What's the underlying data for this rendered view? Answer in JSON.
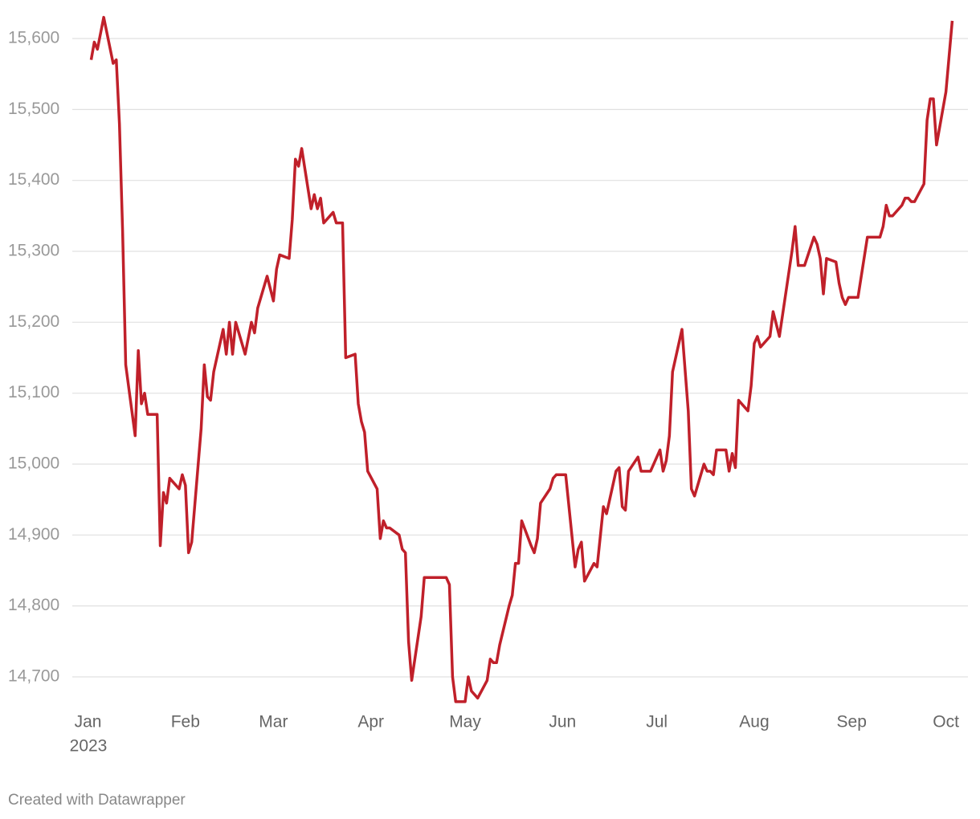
{
  "chart_data": {
    "type": "line",
    "x": [
      1,
      2,
      3,
      5,
      8,
      9,
      10,
      11,
      12,
      15,
      16,
      17,
      18,
      19,
      22,
      23,
      24,
      25,
      26,
      29,
      30,
      31,
      32,
      33,
      36,
      37,
      38,
      39,
      40,
      43,
      44,
      45,
      46,
      47,
      50,
      52,
      53,
      54,
      57,
      59,
      60,
      61,
      64,
      65,
      66,
      67,
      68,
      71,
      72,
      73,
      74,
      75,
      78,
      79,
      81,
      82,
      85,
      86,
      87,
      88,
      89,
      92,
      93,
      94,
      95,
      96,
      99,
      100,
      101,
      102,
      103,
      106,
      107,
      114,
      115,
      116,
      117,
      120,
      121,
      122,
      124,
      127,
      128,
      129,
      130,
      131,
      134,
      135,
      136,
      137,
      138,
      141,
      142,
      143,
      144,
      147,
      148,
      149,
      152,
      155,
      156,
      157,
      158,
      161,
      162,
      164,
      165,
      168,
      169,
      170,
      171,
      172,
      175,
      176,
      179,
      182,
      183,
      184,
      185,
      186,
      189,
      191,
      192,
      193,
      196,
      197,
      198,
      199,
      200,
      203,
      204,
      205,
      206,
      207,
      210,
      211,
      212,
      213,
      214,
      217,
      218,
      220,
      224,
      225,
      226,
      228,
      231,
      232,
      233,
      234,
      235,
      238,
      239,
      240,
      241,
      242,
      245,
      248,
      252,
      253,
      254,
      255,
      256,
      259,
      260,
      261,
      262,
      263,
      266,
      267,
      268,
      269,
      270,
      273,
      275
    ],
    "values": [
      15570,
      15595,
      15585,
      15630,
      15565,
      15570,
      15480,
      15330,
      15140,
      15040,
      15160,
      15085,
      15100,
      15070,
      15070,
      14885,
      14960,
      14945,
      14980,
      14965,
      14985,
      14970,
      14875,
      14890,
      15050,
      15140,
      15095,
      15090,
      15130,
      15190,
      15155,
      15200,
      15155,
      15200,
      15155,
      15200,
      15185,
      15220,
      15265,
      15230,
      15275,
      15295,
      15290,
      15345,
      15430,
      15420,
      15445,
      15360,
      15380,
      15360,
      15375,
      15340,
      15355,
      15340,
      15340,
      15150,
      15155,
      15085,
      15060,
      15045,
      14990,
      14965,
      14895,
      14920,
      14910,
      14910,
      14900,
      14880,
      14875,
      14750,
      14695,
      14785,
      14840,
      14840,
      14830,
      14700,
      14665,
      14665,
      14700,
      14680,
      14670,
      14695,
      14725,
      14720,
      14720,
      14745,
      14800,
      14815,
      14860,
      14860,
      14920,
      14885,
      14875,
      14895,
      14945,
      14965,
      14980,
      14985,
      14985,
      14855,
      14880,
      14890,
      14835,
      14860,
      14855,
      14940,
      14930,
      14990,
      14995,
      14940,
      14935,
      14990,
      15010,
      14990,
      14990,
      15020,
      14990,
      15005,
      15040,
      15130,
      15190,
      15075,
      14965,
      14955,
      15000,
      14990,
      14990,
      14985,
      15020,
      15020,
      14990,
      15015,
      14995,
      15090,
      15075,
      15110,
      15170,
      15180,
      15165,
      15180,
      15215,
      15180,
      15300,
      15335,
      15280,
      15280,
      15320,
      15310,
      15290,
      15240,
      15290,
      15285,
      15255,
      15235,
      15225,
      15235,
      15235,
      15320,
      15320,
      15335,
      15365,
      15350,
      15350,
      15365,
      15375,
      15375,
      15370,
      15370,
      15395,
      15485,
      15515,
      15515,
      15450,
      15525,
      15625
    ],
    "color": "#c0202a",
    "xlim": [
      -5,
      280
    ],
    "xticks": [
      {
        "value": 0,
        "label": "Jan"
      },
      {
        "value": 31,
        "label": "Feb"
      },
      {
        "value": 59,
        "label": "Mar"
      },
      {
        "value": 90,
        "label": "Apr"
      },
      {
        "value": 120,
        "label": "May"
      },
      {
        "value": 151,
        "label": "Jun"
      },
      {
        "value": 181,
        "label": "Jul"
      },
      {
        "value": 212,
        "label": "Aug"
      },
      {
        "value": 243,
        "label": "Sep"
      },
      {
        "value": 273,
        "label": "Oct"
      }
    ],
    "year": "2023",
    "ylim": [
      14660,
      15640
    ],
    "yticks": [
      {
        "value": 14700,
        "label": "14,700"
      },
      {
        "value": 14800,
        "label": "14,800"
      },
      {
        "value": 14900,
        "label": "14,900"
      },
      {
        "value": 15000,
        "label": "15,000"
      },
      {
        "value": 15100,
        "label": "15,100"
      },
      {
        "value": 15200,
        "label": "15,200"
      },
      {
        "value": 15300,
        "label": "15,300"
      },
      {
        "value": 15400,
        "label": "15,400"
      },
      {
        "value": 15500,
        "label": "15,500"
      },
      {
        "value": 15600,
        "label": "15,600"
      }
    ],
    "grid": true,
    "footer": "Created with Datawrapper"
  }
}
